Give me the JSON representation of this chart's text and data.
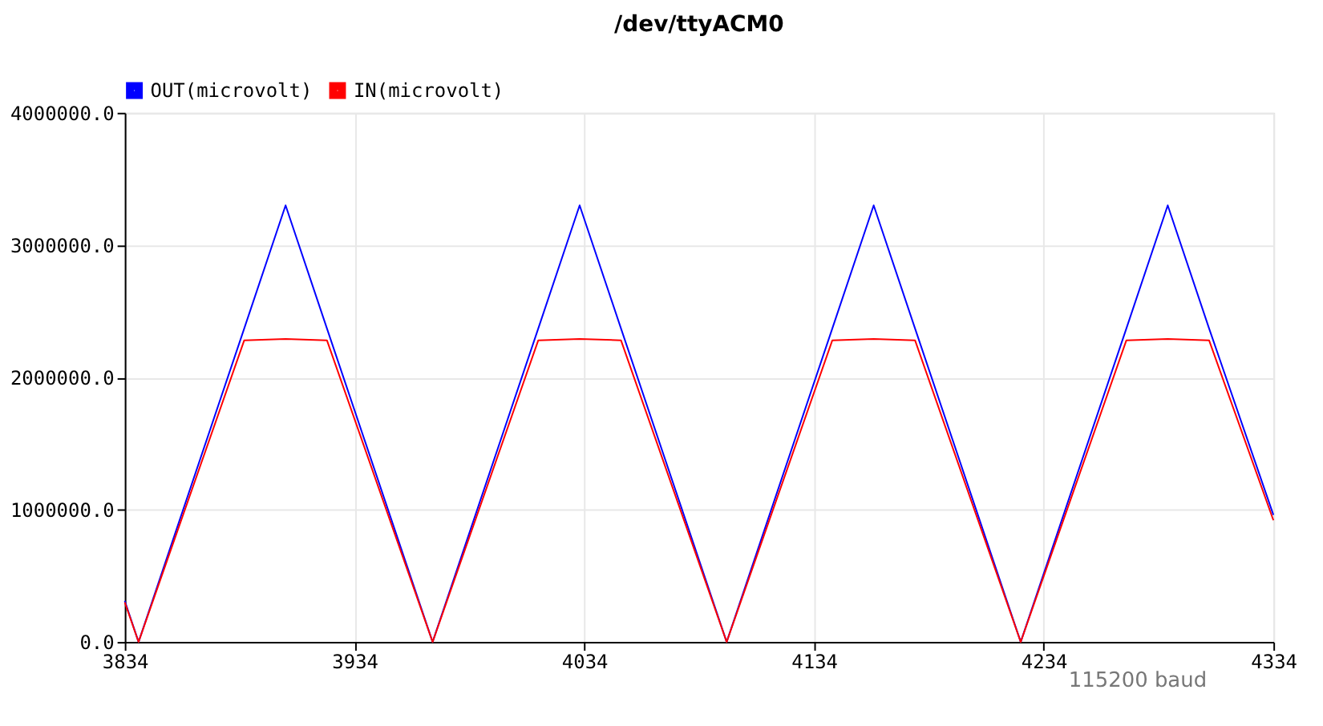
{
  "chart_data": {
    "type": "line",
    "title": "/dev/ttyACM0",
    "x": [
      3834,
      3840,
      3886,
      3904,
      3922,
      3968,
      4014,
      4032,
      4050,
      4096,
      4142,
      4160,
      4178,
      4224,
      4270,
      4288,
      4306,
      4334
    ],
    "series": [
      {
        "name": "OUT(microvolt)",
        "color": "#0000ff",
        "values": [
          310000,
          0,
          2370000,
          3300000,
          2370000,
          0,
          2370000,
          3300000,
          2370000,
          0,
          2370000,
          3300000,
          2370000,
          0,
          2370000,
          3300000,
          2370000,
          960000
        ]
      },
      {
        "name": "IN(microvolt)",
        "color": "#ff0000",
        "values": [
          300000,
          0,
          2280000,
          2290000,
          2280000,
          0,
          2280000,
          2290000,
          2280000,
          0,
          2280000,
          2290000,
          2280000,
          0,
          2280000,
          2290000,
          2280000,
          920000
        ]
      }
    ],
    "xlim": [
      3834,
      4334
    ],
    "xticks": [
      3834,
      3934,
      4034,
      4134,
      4234,
      4334
    ],
    "ylim": [
      0,
      4000000
    ],
    "yticks": [
      {
        "value": 0,
        "label": "0.0"
      },
      {
        "value": 1000000,
        "label": "1000000.0"
      },
      {
        "value": 2000000,
        "label": "2000000.0"
      },
      {
        "value": 3000000,
        "label": "3000000.0"
      },
      {
        "value": 4000000,
        "label": "4000000.0"
      }
    ],
    "grid": true,
    "legend": "top left",
    "marker": "none",
    "line_style": "solid",
    "annotations": [
      "115200 baud"
    ]
  }
}
